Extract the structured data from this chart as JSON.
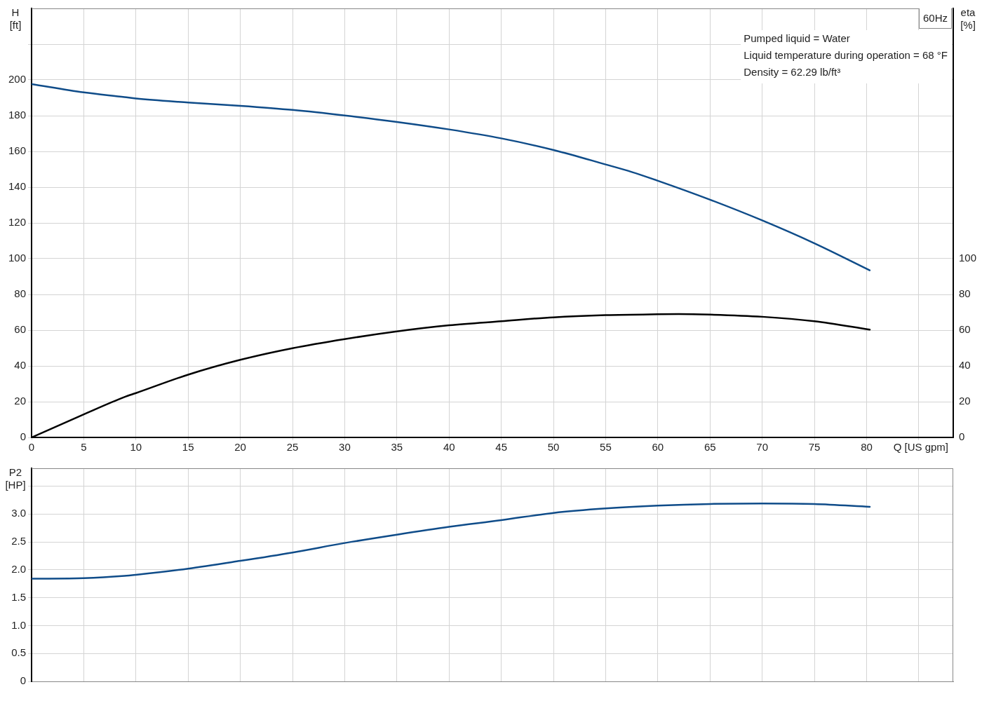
{
  "chart_data": [
    {
      "type": "line",
      "title": "60Hz",
      "xlabel": "Q [US gpm]",
      "ylabel": "H [ft]",
      "y2label": "eta [%]",
      "annotations": [
        "Pumped liquid = Water",
        "Liquid temperature during operation = 68 °F",
        "Density = 62.29 lb/ft³"
      ],
      "series": [
        {
          "color": "#0f4c89",
          "x": [
            0,
            5,
            8.9,
            10,
            15,
            20,
            25,
            30,
            35,
            40,
            45,
            50,
            55,
            57.5,
            60,
            65,
            70,
            75,
            80.3
          ],
          "values": [
            197.7,
            193.0,
            190.4,
            189.6,
            187.4,
            185.5,
            183.2,
            180.1,
            176.5,
            172.3,
            167.3,
            160.8,
            152.7,
            148.5,
            143.6,
            133.0,
            121.4,
            108.6,
            93.5
          ]
        },
        {
          "color": "#000000",
          "axis": "y2",
          "x": [
            0,
            5,
            8.9,
            10,
            15,
            20,
            25,
            30,
            35,
            40,
            45,
            50,
            55,
            60,
            62,
            65,
            70,
            75,
            80.3
          ],
          "values": [
            0,
            12.9,
            22.6,
            24.8,
            35.1,
            43.4,
            49.9,
            55.0,
            59.3,
            62.7,
            65.0,
            67.2,
            68.4,
            68.9,
            69.0,
            68.7,
            67.5,
            65.0,
            60.3
          ]
        }
      ],
      "xlim": [
        0,
        88.3
      ],
      "xticks": [
        0,
        5,
        10,
        15,
        20,
        25,
        30,
        35,
        40,
        45,
        50,
        55,
        60,
        65,
        70,
        75,
        80,
        {
          "value": 85,
          "label": null
        }
      ],
      "ylim": [
        0,
        240
      ],
      "yticks": [
        0,
        20,
        40,
        60,
        80,
        100,
        120,
        140,
        160,
        180,
        200,
        {
          "value": 220,
          "label": null
        }
      ],
      "y2lim": [
        0,
        240
      ],
      "y2ticks": [
        0,
        20,
        40,
        60,
        80,
        100
      ],
      "grid": true,
      "marker": "none"
    },
    {
      "type": "line",
      "ylabel": "P2 [HP]",
      "series": [
        {
          "color": "#0f4c89",
          "x": [
            0,
            5,
            8.9,
            10,
            15,
            20,
            25,
            30,
            35,
            40,
            45,
            50,
            55,
            60,
            65,
            70,
            75,
            80.3
          ],
          "values": [
            1.84,
            1.85,
            1.89,
            1.91,
            2.02,
            2.16,
            2.31,
            2.48,
            2.63,
            2.77,
            2.89,
            3.02,
            3.1,
            3.15,
            3.18,
            3.19,
            3.18,
            3.13
          ]
        }
      ],
      "xlim": [
        0,
        88.3
      ],
      "xticks": [
        0,
        5,
        10,
        15,
        20,
        25,
        30,
        35,
        40,
        45,
        50,
        55,
        60,
        65,
        70,
        75,
        80,
        85
      ],
      "ylim": [
        0,
        3.82
      ],
      "yticks": [
        0,
        0.5,
        {
          "value": 1,
          "label": "1.0"
        },
        1.5,
        {
          "value": 2,
          "label": "2.0"
        },
        2.5,
        {
          "value": 3,
          "label": "3.0"
        },
        {
          "value": 3.5,
          "label": null
        }
      ],
      "tick_labels": "y",
      "grid": true,
      "marker": "none"
    }
  ]
}
